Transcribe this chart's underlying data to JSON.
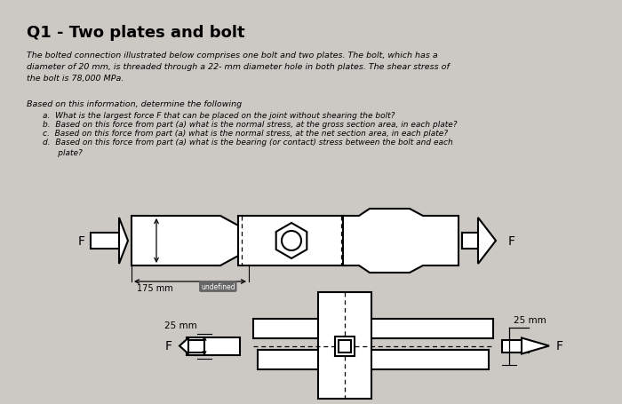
{
  "title": "Q1 - Two plates and bolt",
  "bg_color": "#ccc9c5",
  "text_color": "#000000",
  "paragraph1": "The bolted connection illustrated below comprises one bolt and two plates. The bolt, which has a\ndiameter of 20 mm, is threaded through a 22- mm diameter hole in both plates. The shear stress of\nthe bolt is 78,000 MPa.",
  "paragraph2_title": "Based on this information, determine the following",
  "items": [
    "a.  What is the largest force F that can be placed on the joint without shearing the bolt?",
    "b.  Based on this force from part (a) what is the normal stress, at the gross section area, in each plate?",
    "c.  Based on this force from part (a) what is the normal stress, at the net section area, in each plate?",
    "d.  Based on this force from part (a) what is the bearing (or contact) stress between the bolt and each\n      plate?"
  ],
  "label_175mm": "175 mm",
  "label_undefined": "undefined",
  "label_25mm_left": "25 mm",
  "label_25mm_right": "25 mm"
}
